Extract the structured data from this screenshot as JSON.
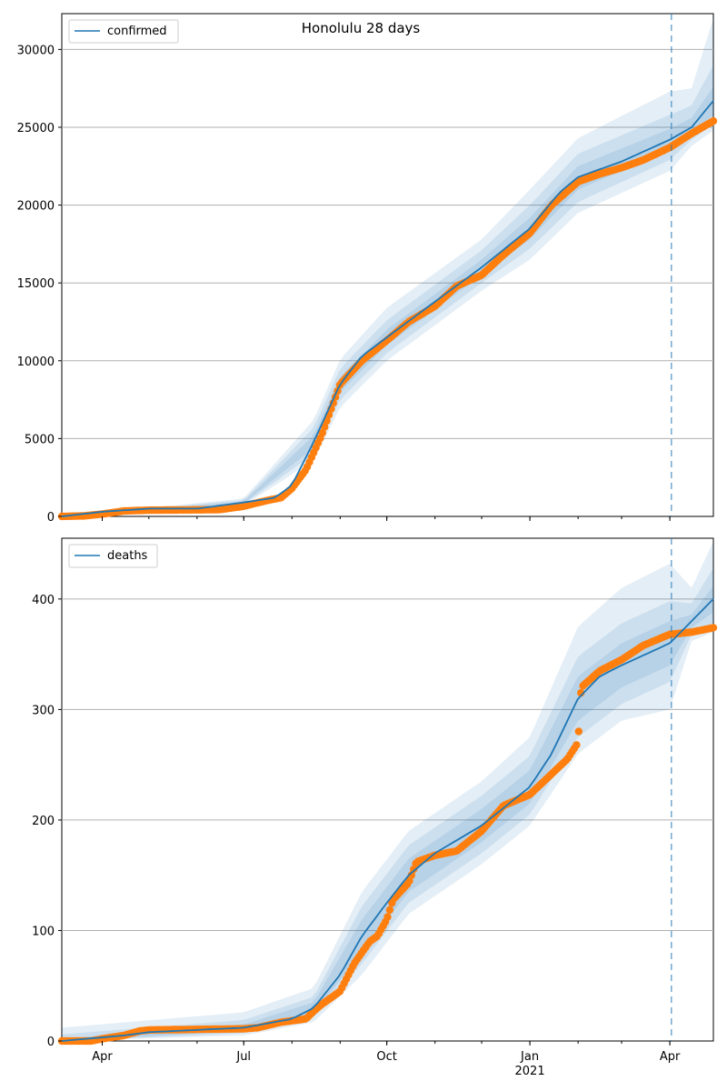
{
  "chart_data": {
    "title": "Honolulu 28 days",
    "colors": {
      "model": "#1f77b4",
      "observed": "#ff7f0e",
      "band": "#1f77b4",
      "grid": "#b0b0b0"
    },
    "x_ticks": [
      {
        "label": "Apr",
        "date": "2020-04-01"
      },
      {
        "label": "Jul",
        "date": "2020-07-01"
      },
      {
        "label": "Oct",
        "date": "2020-10-01"
      },
      {
        "label": "Jan",
        "date": "2021-01-01"
      },
      {
        "label": "Apr",
        "date": "2021-04-01"
      }
    ],
    "x_year_label": "2021",
    "x_range": [
      "2020-03-06",
      "2021-04-29"
    ],
    "forecast_start": "2021-04-02",
    "panels": [
      {
        "type": "line",
        "name": "confirmed",
        "legend": "confirmed",
        "legend_position": "upper-left",
        "ylim": [
          0,
          32300
        ],
        "y_ticks": [
          0,
          5000,
          10000,
          15000,
          20000,
          25000,
          30000
        ],
        "grid": "horizontal",
        "model": [
          [
            "2020-03-06",
            0
          ],
          [
            "2020-04-01",
            300
          ],
          [
            "2020-05-01",
            500
          ],
          [
            "2020-06-01",
            500
          ],
          [
            "2020-07-01",
            900
          ],
          [
            "2020-07-21",
            1200
          ],
          [
            "2020-08-01",
            2000
          ],
          [
            "2020-08-15",
            4800
          ],
          [
            "2020-09-01",
            8500
          ],
          [
            "2020-09-15",
            10300
          ],
          [
            "2020-10-01",
            11500
          ],
          [
            "2020-11-01",
            13800
          ],
          [
            "2020-12-01",
            16000
          ],
          [
            "2021-01-01",
            18500
          ],
          [
            "2021-01-20",
            20800
          ],
          [
            "2021-02-01",
            21800
          ],
          [
            "2021-03-01",
            22800
          ],
          [
            "2021-04-01",
            24200
          ],
          [
            "2021-04-15",
            25000
          ],
          [
            "2021-04-29",
            26700
          ]
        ],
        "band_inner": [
          [
            [
              "2020-03-06",
              0
            ],
            [
              "2020-07-01",
              850
            ],
            [
              "2020-08-15",
              4400
            ],
            [
              "2020-09-01",
              8000
            ],
            [
              "2020-10-01",
              11000
            ],
            [
              "2020-12-01",
              15500
            ],
            [
              "2021-01-01",
              17800
            ],
            [
              "2021-02-01",
              21000
            ],
            [
              "2021-04-01",
              23500
            ],
            [
              "2021-04-15",
              24500
            ],
            [
              "2021-04-29",
              25800
            ]
          ],
          [
            [
              "2020-03-06",
              0
            ],
            [
              "2020-07-01",
              950
            ],
            [
              "2020-08-15",
              5200
            ],
            [
              "2020-09-01",
              9000
            ],
            [
              "2020-10-01",
              12000
            ],
            [
              "2020-12-01",
              16500
            ],
            [
              "2021-01-01",
              19200
            ],
            [
              "2021-02-01",
              22500
            ],
            [
              "2021-04-01",
              24900
            ],
            [
              "2021-04-15",
              25600
            ],
            [
              "2021-04-29",
              27600
            ]
          ]
        ],
        "band_mid": [
          [
            [
              "2020-03-06",
              0
            ],
            [
              "2020-07-01",
              780
            ],
            [
              "2020-08-15",
              4000
            ],
            [
              "2020-09-01",
              7500
            ],
            [
              "2020-10-01",
              10500
            ],
            [
              "2020-12-01",
              15000
            ],
            [
              "2021-01-01",
              17200
            ],
            [
              "2021-02-01",
              20200
            ],
            [
              "2021-04-01",
              22900
            ],
            [
              "2021-04-15",
              24200
            ],
            [
              "2021-04-29",
              25200
            ]
          ],
          [
            [
              "2020-03-06",
              0
            ],
            [
              "2020-07-01",
              1050
            ],
            [
              "2020-08-15",
              5700
            ],
            [
              "2020-09-01",
              9500
            ],
            [
              "2020-10-01",
              12600
            ],
            [
              "2020-12-01",
              17100
            ],
            [
              "2021-01-01",
              20000
            ],
            [
              "2021-02-01",
              23300
            ],
            [
              "2021-04-01",
              25800
            ],
            [
              "2021-04-15",
              26400
            ],
            [
              "2021-04-29",
              29000
            ]
          ]
        ],
        "band_outer": [
          [
            [
              "2020-03-06",
              0
            ],
            [
              "2020-07-01",
              700
            ],
            [
              "2020-08-15",
              3600
            ],
            [
              "2020-09-01",
              7000
            ],
            [
              "2020-10-01",
              10000
            ],
            [
              "2020-12-01",
              14500
            ],
            [
              "2021-01-01",
              16500
            ],
            [
              "2021-02-01",
              19500
            ],
            [
              "2021-04-01",
              22200
            ],
            [
              "2021-04-15",
              23800
            ],
            [
              "2021-04-29",
              24800
            ]
          ],
          [
            [
              "2020-03-06",
              0
            ],
            [
              "2020-07-01",
              1150
            ],
            [
              "2020-08-15",
              6200
            ],
            [
              "2020-09-01",
              10100
            ],
            [
              "2020-10-01",
              13400
            ],
            [
              "2020-12-01",
              17800
            ],
            [
              "2021-01-01",
              21000
            ],
            [
              "2021-02-01",
              24300
            ],
            [
              "2021-04-01",
              27300
            ],
            [
              "2021-04-15",
              27500
            ],
            [
              "2021-04-29",
              32000
            ]
          ]
        ],
        "observed": [
          [
            "2020-03-06",
            0
          ],
          [
            "2020-03-20",
            30
          ],
          [
            "2020-04-01",
            150
          ],
          [
            "2020-04-15",
            350
          ],
          [
            "2020-05-01",
            400
          ],
          [
            "2020-06-01",
            420
          ],
          [
            "2020-06-15",
            430
          ],
          [
            "2020-07-01",
            650
          ],
          [
            "2020-07-15",
            1000
          ],
          [
            "2020-07-25",
            1200
          ],
          [
            "2020-08-01",
            1800
          ],
          [
            "2020-08-10",
            3000
          ],
          [
            "2020-08-20",
            5200
          ],
          [
            "2020-09-01",
            8500
          ],
          [
            "2020-09-15",
            10000
          ],
          [
            "2020-10-01",
            11300
          ],
          [
            "2020-10-15",
            12500
          ],
          [
            "2020-11-01",
            13500
          ],
          [
            "2020-11-15",
            14800
          ],
          [
            "2020-12-01",
            15500
          ],
          [
            "2020-12-15",
            16800
          ],
          [
            "2021-01-01",
            18200
          ],
          [
            "2021-01-15",
            20000
          ],
          [
            "2021-02-01",
            21500
          ],
          [
            "2021-02-15",
            22000
          ],
          [
            "2021-03-01",
            22400
          ],
          [
            "2021-03-15",
            22900
          ],
          [
            "2021-04-01",
            23700
          ],
          [
            "2021-04-15",
            24600
          ],
          [
            "2021-04-29",
            25400
          ]
        ]
      },
      {
        "type": "line",
        "name": "deaths",
        "legend": "deaths",
        "legend_position": "upper-left",
        "ylim": [
          0,
          455
        ],
        "y_ticks": [
          0,
          100,
          200,
          300,
          400
        ],
        "grid": "horizontal",
        "model": [
          [
            "2020-03-06",
            0
          ],
          [
            "2020-04-15",
            5
          ],
          [
            "2020-05-01",
            8
          ],
          [
            "2020-07-01",
            12
          ],
          [
            "2020-08-01",
            20
          ],
          [
            "2020-08-15",
            30
          ],
          [
            "2020-09-01",
            60
          ],
          [
            "2020-09-15",
            95
          ],
          [
            "2020-10-01",
            125
          ],
          [
            "2020-10-15",
            150
          ],
          [
            "2020-11-01",
            170
          ],
          [
            "2020-12-01",
            195
          ],
          [
            "2021-01-01",
            230
          ],
          [
            "2021-01-15",
            260
          ],
          [
            "2021-02-01",
            310
          ],
          [
            "2021-02-15",
            330
          ],
          [
            "2021-03-01",
            340
          ],
          [
            "2021-04-01",
            360
          ],
          [
            "2021-04-15",
            380
          ],
          [
            "2021-04-29",
            400
          ]
        ],
        "band_inner": [
          [
            [
              "2020-03-06",
              0
            ],
            [
              "2020-07-01",
              9
            ],
            [
              "2020-08-15",
              25
            ],
            [
              "2020-09-15",
              80
            ],
            [
              "2020-10-15",
              135
            ],
            [
              "2020-12-01",
              180
            ],
            [
              "2021-01-01",
              215
            ],
            [
              "2021-02-01",
              290
            ],
            [
              "2021-03-01",
              320
            ],
            [
              "2021-04-01",
              340
            ],
            [
              "2021-04-15",
              374
            ],
            [
              "2021-04-29",
              388
            ]
          ],
          [
            [
              "2020-03-06",
              2
            ],
            [
              "2020-07-01",
              15
            ],
            [
              "2020-08-15",
              35
            ],
            [
              "2020-09-15",
              110
            ],
            [
              "2020-10-15",
              165
            ],
            [
              "2020-12-01",
              210
            ],
            [
              "2021-01-01",
              245
            ],
            [
              "2021-02-01",
              330
            ],
            [
              "2021-03-01",
              360
            ],
            [
              "2021-04-01",
              380
            ],
            [
              "2021-04-15",
              386
            ],
            [
              "2021-04-29",
              412
            ]
          ]
        ],
        "band_mid": [
          [
            [
              "2020-03-06",
              0
            ],
            [
              "2020-07-01",
              7
            ],
            [
              "2020-08-15",
              21
            ],
            [
              "2020-09-15",
              70
            ],
            [
              "2020-10-15",
              125
            ],
            [
              "2020-12-01",
              170
            ],
            [
              "2021-01-01",
              205
            ],
            [
              "2021-02-01",
              275
            ],
            [
              "2021-03-01",
              305
            ],
            [
              "2021-04-01",
              325
            ],
            [
              "2021-04-15",
              368
            ],
            [
              "2021-04-29",
              378
            ]
          ],
          [
            [
              "2020-03-06",
              6
            ],
            [
              "2020-07-01",
              19
            ],
            [
              "2020-08-15",
              40
            ],
            [
              "2020-09-15",
              122
            ],
            [
              "2020-10-15",
              177
            ],
            [
              "2020-12-01",
              222
            ],
            [
              "2021-01-01",
              258
            ],
            [
              "2021-02-01",
              348
            ],
            [
              "2021-03-01",
              378
            ],
            [
              "2021-04-01",
              398
            ],
            [
              "2021-04-15",
              396
            ],
            [
              "2021-04-29",
              428
            ]
          ]
        ],
        "band_outer": [
          [
            [
              "2020-03-06",
              0
            ],
            [
              "2020-07-01",
              5
            ],
            [
              "2020-08-15",
              17
            ],
            [
              "2020-09-15",
              60
            ],
            [
              "2020-10-15",
              115
            ],
            [
              "2020-12-01",
              160
            ],
            [
              "2021-01-01",
              195
            ],
            [
              "2021-02-01",
              260
            ],
            [
              "2021-03-01",
              290
            ],
            [
              "2021-04-01",
              300
            ],
            [
              "2021-04-15",
              362
            ],
            [
              "2021-04-29",
              370
            ]
          ],
          [
            [
              "2020-03-06",
              12
            ],
            [
              "2020-07-01",
              26
            ],
            [
              "2020-08-15",
              48
            ],
            [
              "2020-09-15",
              135
            ],
            [
              "2020-10-15",
              190
            ],
            [
              "2020-12-01",
              235
            ],
            [
              "2021-01-01",
              275
            ],
            [
              "2021-02-01",
              375
            ],
            [
              "2021-03-01",
              410
            ],
            [
              "2021-04-01",
              432
            ],
            [
              "2021-04-15",
              410
            ],
            [
              "2021-04-29",
              452
            ]
          ]
        ],
        "observed": [
          [
            "2020-03-06",
            0
          ],
          [
            "2020-03-25",
            0
          ],
          [
            "2020-04-01",
            2
          ],
          [
            "2020-04-15",
            5
          ],
          [
            "2020-04-25",
            9
          ],
          [
            "2020-05-01",
            10
          ],
          [
            "2020-07-01",
            11
          ],
          [
            "2020-07-10",
            12
          ],
          [
            "2020-07-25",
            17
          ],
          [
            "2020-08-10",
            20
          ],
          [
            "2020-08-15",
            27
          ],
          [
            "2020-08-20",
            33
          ],
          [
            "2020-09-01",
            45
          ],
          [
            "2020-09-10",
            70
          ],
          [
            "2020-09-20",
            90
          ],
          [
            "2020-09-25",
            95
          ],
          [
            "2020-10-01",
            110
          ],
          [
            "2020-10-05",
            128
          ],
          [
            "2020-10-15",
            143
          ],
          [
            "2020-10-20",
            162
          ],
          [
            "2020-11-01",
            168
          ],
          [
            "2020-11-15",
            172
          ],
          [
            "2020-12-01",
            190
          ],
          [
            "2020-12-15",
            213
          ],
          [
            "2021-01-01",
            223
          ],
          [
            "2021-01-10",
            235
          ],
          [
            "2021-01-25",
            255
          ],
          [
            "2021-02-01",
            270
          ],
          [
            "2021-02-03",
            320
          ],
          [
            "2021-02-15",
            335
          ],
          [
            "2021-03-01",
            345
          ],
          [
            "2021-03-15",
            358
          ],
          [
            "2021-04-01",
            368
          ],
          [
            "2021-04-15",
            370
          ],
          [
            "2021-04-29",
            374
          ]
        ]
      }
    ]
  }
}
